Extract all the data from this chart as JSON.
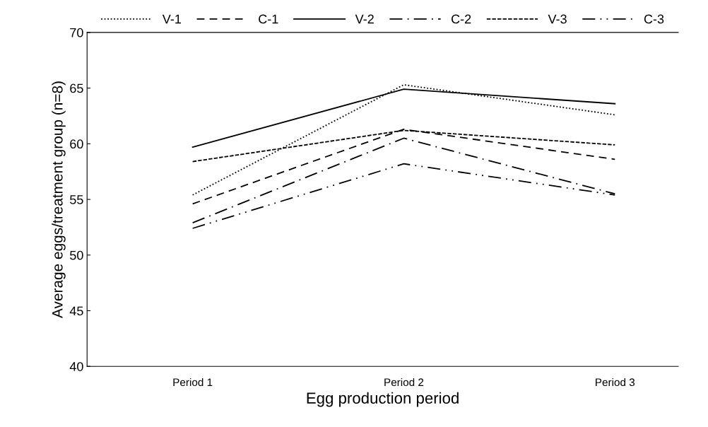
{
  "chart_data": {
    "type": "line",
    "xlabel": "Egg production period",
    "ylabel": "Average eggs/treatment group (n=8)",
    "categories": [
      "Period 1",
      "Period 2",
      "Period 3"
    ],
    "series": [
      {
        "name": "V-1",
        "color": "#000000",
        "line_style": "dotted",
        "values": [
          55.4,
          65.3,
          62.6
        ]
      },
      {
        "name": "C-1",
        "color": "#000000",
        "line_style": "dashed",
        "values": [
          54.6,
          61.3,
          58.6
        ]
      },
      {
        "name": "V-2",
        "color": "#000000",
        "line_style": "solid",
        "values": [
          59.7,
          64.9,
          63.6
        ]
      },
      {
        "name": "C-2",
        "color": "#000000",
        "line_style": "dashdot",
        "values": [
          52.9,
          60.5,
          55.5
        ]
      },
      {
        "name": "V-3",
        "color": "#000000",
        "line_style": "shortdash",
        "values": [
          58.4,
          61.2,
          59.9
        ]
      },
      {
        "name": "C-3",
        "color": "#000000",
        "line_style": "dashdotdot",
        "values": [
          52.4,
          58.2,
          55.4
        ]
      }
    ],
    "ylim": [
      40,
      70
    ],
    "yticks": [
      40,
      45,
      50,
      55,
      60,
      65,
      70
    ],
    "grid": false,
    "legend": "top",
    "marker": "none"
  }
}
